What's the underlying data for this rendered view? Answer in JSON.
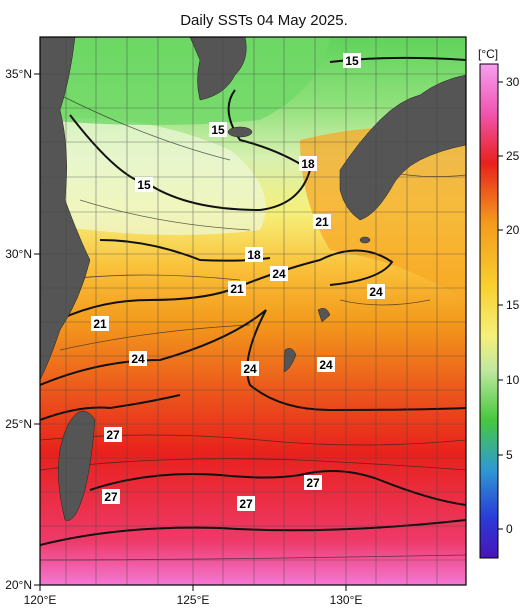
{
  "title": "Daily SSTs 04 May 2025.",
  "colorbar": {
    "unit_label": "[°C]",
    "ticks": [
      "30",
      "25",
      "20",
      "15",
      "10",
      "5",
      "0"
    ]
  },
  "axes": {
    "lat_labels": [
      "35°N",
      "30°N",
      "25°N",
      "20°N"
    ],
    "lon_labels": [
      "120°E",
      "125°E",
      "130°E"
    ]
  },
  "contour_labels": [
    "15",
    "15",
    "15",
    "18",
    "18",
    "21",
    "21",
    "21",
    "24",
    "24",
    "24",
    "24",
    "24",
    "27",
    "27",
    "27",
    "27"
  ],
  "colors": {
    "land": "#555555",
    "cold_green": "#5fd35a",
    "cool_yellow": "#f6f07a",
    "warm_orange": "#f39a1c",
    "hot_red": "#e8211c",
    "very_hot_pink": "#f478d4"
  }
}
